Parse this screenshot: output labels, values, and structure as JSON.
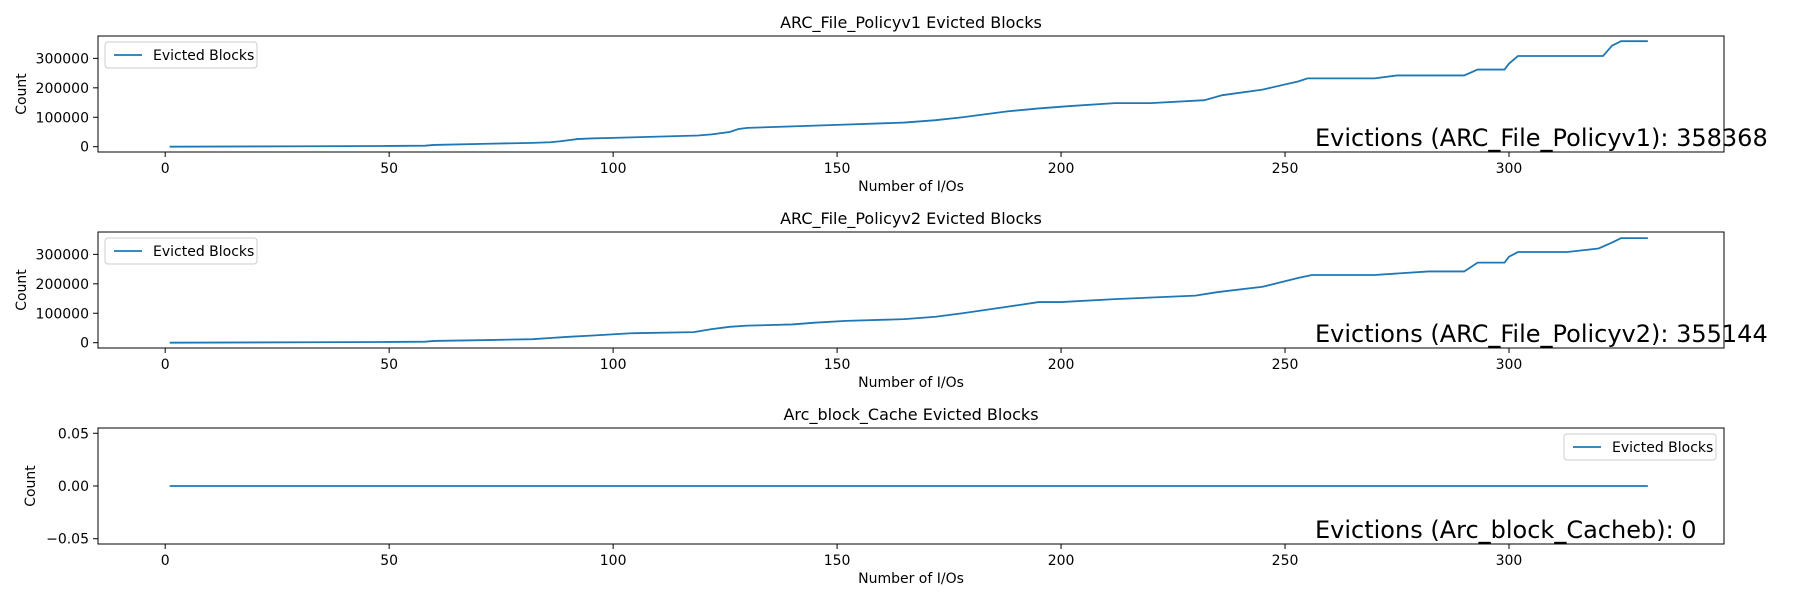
{
  "colors": {
    "line": "#1f77b4",
    "axes": "#000000",
    "background": "#ffffff",
    "legend_border": "#cccccc"
  },
  "chart_data": [
    {
      "type": "line",
      "title": "ARC_File_Policyv1 Evicted Blocks",
      "xlabel": "Number of I/Os",
      "ylabel": "Count",
      "xlim": [
        -15,
        348
      ],
      "ylim": [
        -18000,
        376000
      ],
      "xticks": [
        0,
        50,
        100,
        150,
        200,
        250,
        300
      ],
      "yticks": [
        0,
        100000,
        200000,
        300000
      ],
      "ytick_labels": [
        "0",
        "100000",
        "200000",
        "300000"
      ],
      "legend": {
        "position": "top-left",
        "entries": [
          "Evicted Blocks"
        ]
      },
      "annotation": "Evictions (ARC_File_Policyv1): 358368",
      "grid": false,
      "series": [
        {
          "name": "Evicted Blocks",
          "x": [
            1,
            33,
            50,
            58,
            60,
            72,
            82,
            86,
            88,
            90,
            92,
            95,
            100,
            105,
            112,
            119,
            122,
            126,
            128,
            130,
            150,
            165,
            172,
            178,
            188,
            195,
            202,
            212,
            220,
            232,
            236,
            245,
            253,
            255,
            270,
            275,
            290,
            293,
            299,
            300,
            302,
            313,
            315,
            321,
            323,
            325,
            331
          ],
          "y": [
            0,
            1500,
            2500,
            3500,
            6000,
            10000,
            13000,
            15000,
            18000,
            22000,
            26000,
            28000,
            30000,
            32000,
            35000,
            38000,
            42000,
            50000,
            60000,
            64000,
            74000,
            82000,
            90000,
            100000,
            120000,
            130000,
            138000,
            148000,
            148000,
            158000,
            175000,
            194000,
            222000,
            232000,
            232000,
            242000,
            242000,
            262000,
            262000,
            282000,
            308000,
            308000,
            308000,
            308000,
            343000,
            358368,
            358368
          ]
        }
      ]
    },
    {
      "type": "line",
      "title": "ARC_File_Policyv2 Evicted Blocks",
      "xlabel": "Number of I/Os",
      "ylabel": "Count",
      "xlim": [
        -15,
        348
      ],
      "ylim": [
        -18000,
        376000
      ],
      "xticks": [
        0,
        50,
        100,
        150,
        200,
        250,
        300
      ],
      "yticks": [
        0,
        100000,
        200000,
        300000
      ],
      "ytick_labels": [
        "0",
        "100000",
        "200000",
        "300000"
      ],
      "legend": {
        "position": "top-left",
        "entries": [
          "Evicted Blocks"
        ]
      },
      "annotation": "Evictions (ARC_File_Policyv2): 355144",
      "grid": false,
      "series": [
        {
          "name": "Evicted Blocks",
          "x": [
            1,
            33,
            50,
            58,
            60,
            72,
            82,
            86,
            90,
            95,
            104,
            118,
            122,
            126,
            130,
            140,
            145,
            152,
            165,
            172,
            178,
            188,
            195,
            200,
            212,
            230,
            235,
            245,
            253,
            256,
            270,
            282,
            290,
            293,
            299,
            300,
            302,
            313,
            320,
            323,
            325,
            331
          ],
          "y": [
            0,
            1500,
            2500,
            3500,
            6000,
            9000,
            12000,
            16000,
            20000,
            24000,
            32000,
            36000,
            46000,
            54000,
            58000,
            62000,
            68000,
            74000,
            80000,
            88000,
            100000,
            122000,
            138000,
            138000,
            148000,
            160000,
            172000,
            190000,
            220000,
            230000,
            230000,
            242000,
            242000,
            272000,
            272000,
            292000,
            308000,
            308000,
            320000,
            340000,
            355144,
            355144
          ]
        }
      ]
    },
    {
      "type": "line",
      "title": "Arc_block_Cache Evicted Blocks",
      "xlabel": "Number of I/Os",
      "ylabel": "Count",
      "xlim": [
        -15,
        348
      ],
      "ylim": [
        -0.055,
        0.055
      ],
      "xticks": [
        0,
        50,
        100,
        150,
        200,
        250,
        300
      ],
      "yticks": [
        -0.05,
        0.0,
        0.05
      ],
      "ytick_labels": [
        "−0.05",
        "0.00",
        "0.05"
      ],
      "legend": {
        "position": "top-right",
        "entries": [
          "Evicted Blocks"
        ]
      },
      "annotation": "Evictions (Arc_block_Cacheb): 0",
      "grid": false,
      "series": [
        {
          "name": "Evicted Blocks",
          "x": [
            1,
            331
          ],
          "y": [
            0,
            0
          ]
        }
      ]
    }
  ]
}
